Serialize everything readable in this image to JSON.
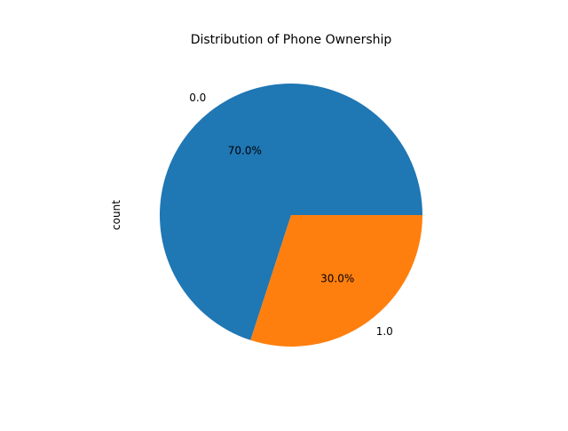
{
  "chart_data": {
    "type": "pie",
    "title": "Distribution of Phone Ownership",
    "ylabel": "count",
    "categories": [
      "0.0",
      "1.0"
    ],
    "values": [
      70,
      30
    ],
    "percent_labels": [
      "70.0%",
      "30.0%"
    ],
    "colors": [
      "#1f77b4",
      "#ff7f0e"
    ],
    "start_angle": 0,
    "direction": "counterclockwise"
  }
}
